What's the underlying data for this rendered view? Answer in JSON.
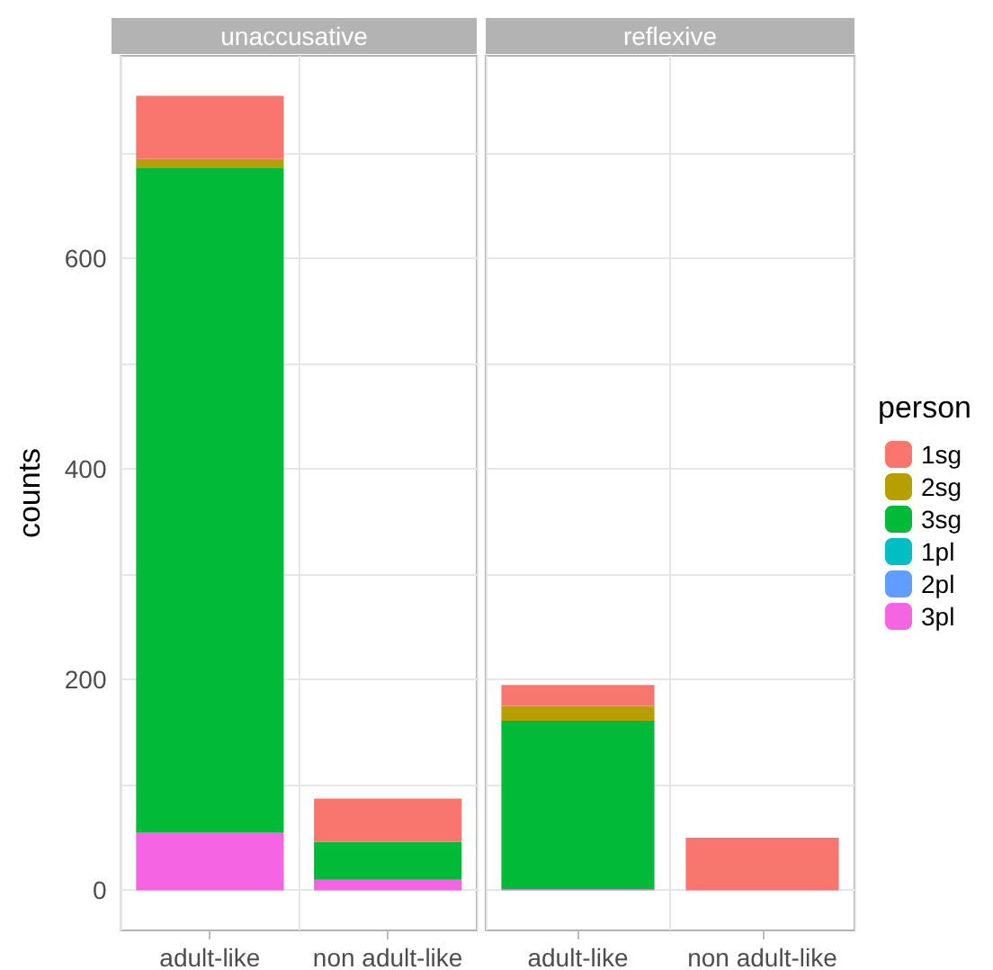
{
  "chart_data": [
    {
      "type": "bar",
      "title": "unaccusative",
      "ylabel": "counts",
      "categories": [
        "adult-like",
        "non adult-like"
      ],
      "stacked": true,
      "grid": true,
      "legend": false,
      "ylim": [
        -38,
        792
      ],
      "yticks": [
        0,
        {
          "value": 100,
          "label": null
        },
        200,
        {
          "value": 300,
          "label": null
        },
        400,
        {
          "value": 500,
          "label": null
        },
        600,
        {
          "value": 700,
          "label": null
        }
      ],
      "series": [
        {
          "color": "#f564e3",
          "values": [
            55,
            10
          ]
        },
        {
          "color": "#00ba38",
          "values": [
            631,
            36
          ]
        },
        {
          "color": "#b79f00",
          "values": [
            8,
            0
          ]
        },
        {
          "color": "#f8766d",
          "values": [
            60,
            41
          ]
        }
      ]
    },
    {
      "type": "bar",
      "title": "reflexive",
      "categories": [
        "adult-like",
        "non adult-like"
      ],
      "stacked": true,
      "grid": true,
      "legend": "right",
      "legend_title": "person",
      "tick_labels": "x",
      "ylim": [
        -38,
        792
      ],
      "yticks": [
        0,
        {
          "value": 100,
          "label": null
        },
        200,
        {
          "value": 300,
          "label": null
        },
        400,
        {
          "value": 500,
          "label": null
        },
        600,
        {
          "value": 700,
          "label": null
        }
      ],
      "series": [
        {
          "name": "3pl",
          "color": "#f564e3",
          "values": [
            1,
            0
          ]
        },
        {
          "name": "2pl",
          "color": "#619cff",
          "values": [
            0,
            0
          ]
        },
        {
          "name": "1pl",
          "color": "#00bfc4",
          "values": [
            0,
            0
          ]
        },
        {
          "name": "3sg",
          "color": "#00ba38",
          "values": [
            160,
            0
          ]
        },
        {
          "name": "2sg",
          "color": "#b79f00",
          "values": [
            14,
            0
          ]
        },
        {
          "name": "1sg",
          "color": "#f8766d",
          "values": [
            20,
            50
          ]
        }
      ]
    }
  ]
}
